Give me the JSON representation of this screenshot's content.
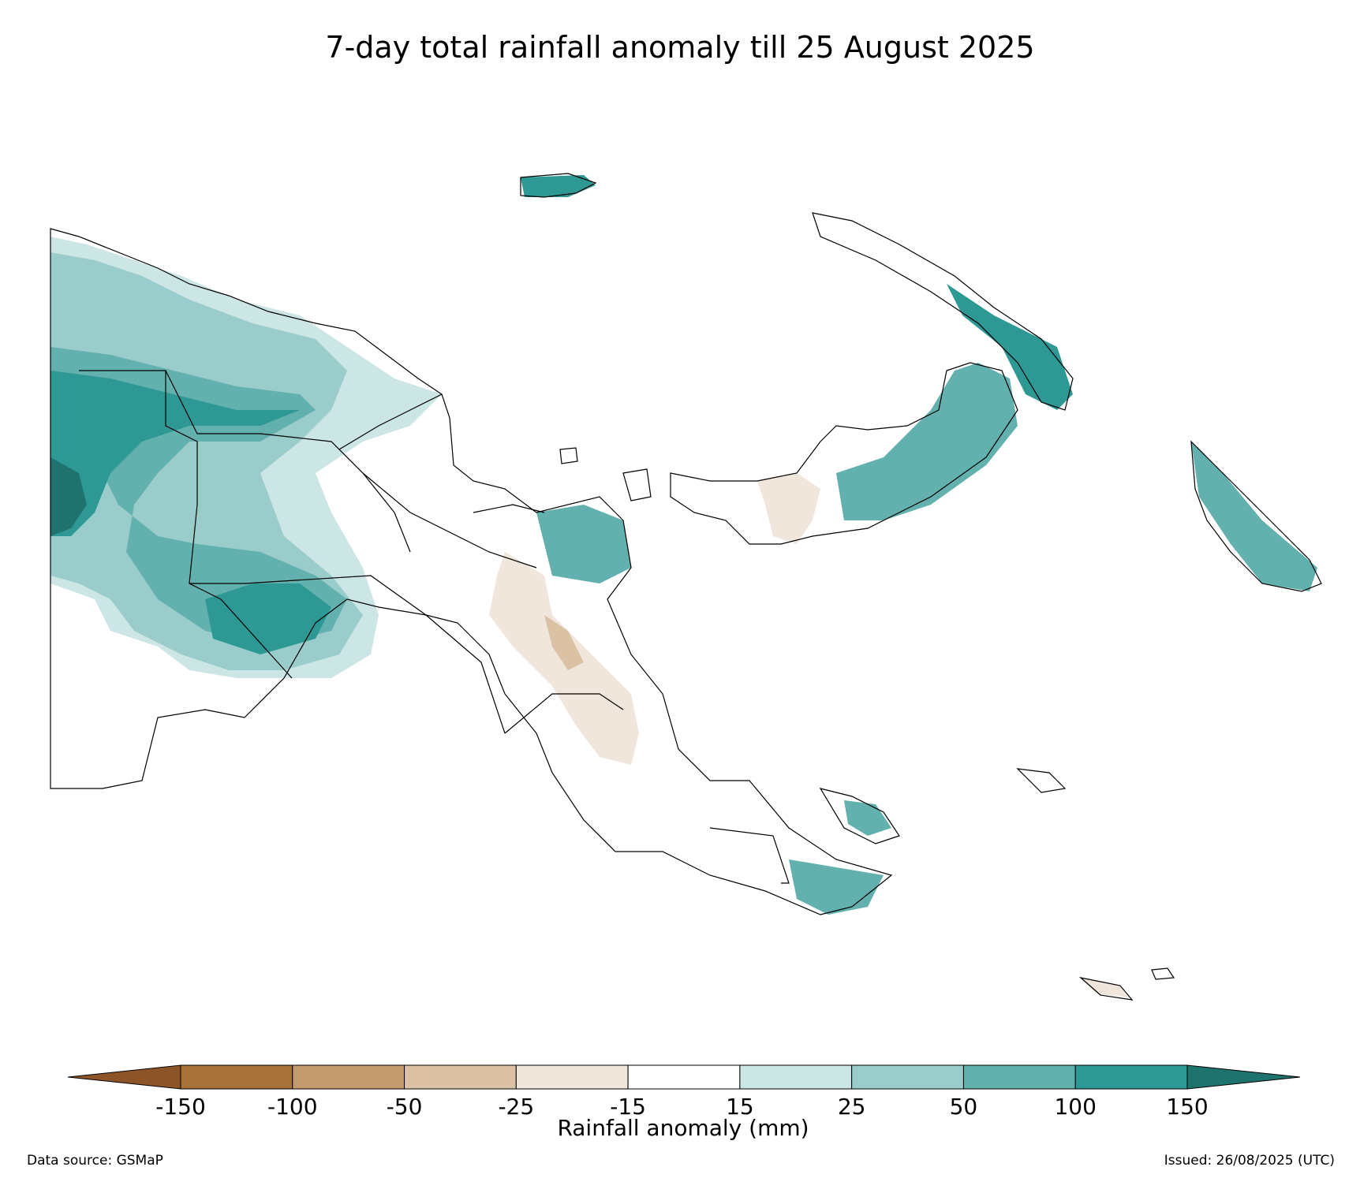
{
  "title": "7-day total rainfall anomaly till 25 August 2025",
  "colorbar": {
    "label": "Rainfall anomaly (mm)",
    "ticks": [
      "-150",
      "-100",
      "-50",
      "-25",
      "-15",
      "15",
      "25",
      "50",
      "100",
      "150"
    ],
    "colors": [
      "#8c5427",
      "#a8733a",
      "#c39a6d",
      "#dbc2a5",
      "#f0e6dc",
      "#ffffff",
      "#cce6e5",
      "#99cccb",
      "#62b1ae",
      "#2e9894",
      "#1f736f"
    ]
  },
  "footer": {
    "source": "Data source: GSMaP",
    "issued": "Issued: 26/08/2025 (UTC)"
  }
}
